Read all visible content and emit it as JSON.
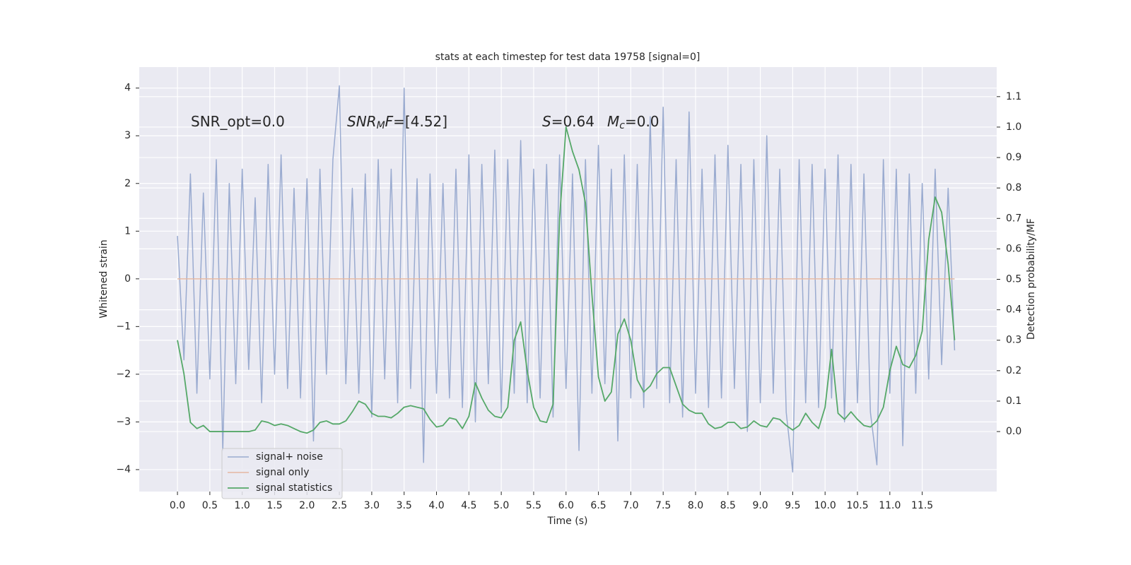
{
  "chart_data": {
    "type": "line",
    "title": "stats at each timestep for test data 19758 [signal=0]",
    "xlabel": "Time (s)",
    "ylabel": "Whitened strain",
    "y2label": "Detection probability/MF",
    "annotations": [
      [
        "SNR_opt=0.0"
      ],
      [
        "SNR",
        "M",
        "F",
        "=[4.52]"
      ],
      [
        "S",
        "=0.64"
      ],
      [
        "M",
        "c",
        "=0.0"
      ]
    ],
    "x": [
      0,
      0.1,
      0.2,
      0.3,
      0.4,
      0.5,
      0.6,
      0.7,
      0.8,
      0.9,
      1,
      1.1,
      1.2,
      1.3,
      1.4,
      1.5,
      1.6,
      1.7,
      1.8,
      1.9,
      2,
      2.1,
      2.2,
      2.3,
      2.4,
      2.5,
      2.6,
      2.7,
      2.8,
      2.9,
      3,
      3.1,
      3.2,
      3.3,
      3.4,
      3.5,
      3.6,
      3.7,
      3.8,
      3.9,
      4,
      4.1,
      4.2,
      4.3,
      4.4,
      4.5,
      4.6,
      4.7,
      4.8,
      4.9,
      5,
      5.1,
      5.2,
      5.3,
      5.4,
      5.5,
      5.6,
      5.7,
      5.8,
      5.9,
      6,
      6.1,
      6.2,
      6.3,
      6.4,
      6.5,
      6.6,
      6.7,
      6.8,
      6.9,
      7,
      7.1,
      7.2,
      7.3,
      7.4,
      7.5,
      7.6,
      7.7,
      7.8,
      7.9,
      8,
      8.1,
      8.2,
      8.3,
      8.4,
      8.5,
      8.6,
      8.7,
      8.8,
      8.9,
      9,
      9.1,
      9.2,
      9.3,
      9.4,
      9.5,
      9.6,
      9.7,
      9.8,
      9.9,
      10,
      10.1,
      10.2,
      10.3,
      10.4,
      10.5,
      10.6,
      10.7,
      10.8,
      10.9,
      11,
      11.1,
      11.2,
      11.3,
      11.4,
      11.5,
      11.6,
      11.7,
      11.8,
      11.9,
      12
    ],
    "series": [
      {
        "name": "signal+ noise",
        "color": "#9aabd0",
        "width": 1.5,
        "values": [
          0.9,
          -1.7,
          2.2,
          -2.4,
          1.8,
          -2.1,
          2.5,
          -3.6,
          2.0,
          -2.2,
          2.3,
          -1.9,
          1.7,
          -2.6,
          2.4,
          -2.0,
          2.6,
          -2.3,
          1.9,
          -2.5,
          2.1,
          -3.4,
          2.3,
          -2.0,
          2.5,
          4.05,
          -2.2,
          1.9,
          -2.4,
          2.2,
          -2.9,
          2.5,
          -2.1,
          2.3,
          -2.6,
          4.0,
          -2.3,
          2.1,
          -3.85,
          2.2,
          -2.4,
          2.0,
          -2.5,
          2.3,
          -2.7,
          2.6,
          -3.0,
          2.4,
          -2.2,
          2.7,
          -2.8,
          2.5,
          -2.4,
          2.9,
          -2.6,
          2.3,
          -2.5,
          2.4,
          -2.9,
          2.6,
          -2.3,
          2.2,
          -3.6,
          2.5,
          -2.4,
          2.8,
          -2.2,
          2.3,
          -3.4,
          2.6,
          -2.5,
          2.4,
          -2.7,
          3.4,
          -2.3,
          3.6,
          -2.6,
          2.5,
          -2.9,
          3.5,
          -2.4,
          2.3,
          -2.7,
          2.6,
          -2.5,
          2.8,
          -2.3,
          2.4,
          -3.2,
          2.5,
          -2.6,
          3.0,
          -2.4,
          2.3,
          -2.8,
          -4.05,
          2.5,
          -2.6,
          2.4,
          -2.7,
          2.3,
          -2.5,
          2.6,
          -3.0,
          2.4,
          -2.6,
          2.2,
          -2.8,
          -3.9,
          2.5,
          -2.4,
          2.3,
          -3.5,
          2.2,
          -2.4,
          2.0,
          -2.1,
          2.3,
          -1.8,
          1.9,
          -1.5
        ]
      },
      {
        "name": "signal only",
        "color": "#e4b7a2",
        "width": 1.5,
        "values": [
          0,
          0,
          0,
          0,
          0,
          0,
          0,
          0,
          0,
          0,
          0,
          0,
          0,
          0,
          0,
          0,
          0,
          0,
          0,
          0,
          0,
          0,
          0,
          0,
          0,
          0,
          0,
          0,
          0,
          0,
          0,
          0,
          0,
          0,
          0,
          0,
          0,
          0,
          0,
          0,
          0,
          0,
          0,
          0,
          0,
          0,
          0,
          0,
          0,
          0,
          0,
          0,
          0,
          0,
          0,
          0,
          0,
          0,
          0,
          0,
          0,
          0,
          0,
          0,
          0,
          0,
          0,
          0,
          0,
          0,
          0,
          0,
          0,
          0,
          0,
          0,
          0,
          0,
          0,
          0,
          0,
          0,
          0,
          0,
          0,
          0,
          0,
          0,
          0,
          0,
          0,
          0,
          0,
          0,
          0,
          0,
          0,
          0,
          0,
          0,
          0,
          0,
          0,
          0,
          0,
          0,
          0,
          0,
          0,
          0,
          0,
          0,
          0,
          0,
          0,
          0,
          0,
          0,
          0,
          0,
          0
        ]
      },
      {
        "name": "signal statistics",
        "color": "#55a868",
        "width": 1.8,
        "axis": "y2",
        "values": [
          0.3,
          0.19,
          0.03,
          0.01,
          0.02,
          0.0,
          0.0,
          0.0,
          0.0,
          0.0,
          0.0,
          0.0,
          0.005,
          0.035,
          0.03,
          0.02,
          0.025,
          0.02,
          0.01,
          0.0,
          -0.005,
          0.005,
          0.03,
          0.035,
          0.025,
          0.025,
          0.035,
          0.065,
          0.1,
          0.09,
          0.06,
          0.05,
          0.05,
          0.045,
          0.06,
          0.08,
          0.085,
          0.08,
          0.075,
          0.04,
          0.015,
          0.02,
          0.045,
          0.04,
          0.01,
          0.05,
          0.16,
          0.11,
          0.07,
          0.05,
          0.045,
          0.08,
          0.3,
          0.36,
          0.2,
          0.08,
          0.035,
          0.03,
          0.09,
          0.7,
          1.0,
          0.92,
          0.86,
          0.75,
          0.45,
          0.18,
          0.1,
          0.13,
          0.32,
          0.37,
          0.3,
          0.17,
          0.13,
          0.15,
          0.19,
          0.21,
          0.21,
          0.15,
          0.09,
          0.07,
          0.06,
          0.06,
          0.025,
          0.01,
          0.015,
          0.03,
          0.03,
          0.01,
          0.015,
          0.035,
          0.02,
          0.015,
          0.045,
          0.04,
          0.02,
          0.005,
          0.02,
          0.06,
          0.03,
          0.01,
          0.08,
          0.27,
          0.06,
          0.04,
          0.065,
          0.04,
          0.02,
          0.015,
          0.035,
          0.08,
          0.2,
          0.28,
          0.22,
          0.21,
          0.25,
          0.33,
          0.63,
          0.77,
          0.72,
          0.55,
          0.3
        ]
      }
    ],
    "xlim": [
      -0.59,
      12.65
    ],
    "ylim": [
      -4.46,
      4.44
    ],
    "y2lim": [
      -0.197,
      1.197
    ],
    "xticks": [
      {
        "value": 0,
        "label": "0.0"
      },
      0.5,
      {
        "value": 1,
        "label": "1.0"
      },
      1.5,
      {
        "value": 2,
        "label": "2.0"
      },
      2.5,
      {
        "value": 3,
        "label": "3.0"
      },
      3.5,
      {
        "value": 4,
        "label": "4.0"
      },
      4.5,
      {
        "value": 5,
        "label": "5.0"
      },
      5.5,
      {
        "value": 6,
        "label": "6.0"
      },
      6.5,
      {
        "value": 7,
        "label": "7.0"
      },
      7.5,
      {
        "value": 8,
        "label": "8.0"
      },
      8.5,
      {
        "value": 9,
        "label": "9.0"
      },
      9.5,
      {
        "value": 10,
        "label": "10.0"
      },
      10.5,
      {
        "value": 11,
        "label": "11.0"
      },
      11.5
    ],
    "yticks": [
      {
        "value": -4,
        "label": "−4"
      },
      {
        "value": -3,
        "label": "−3"
      },
      {
        "value": -2,
        "label": "−2"
      },
      {
        "value": -1,
        "label": "−1"
      },
      0,
      1,
      2,
      3,
      4
    ],
    "y2ticks": [
      {
        "value": 0,
        "label": "0.0"
      },
      0.1,
      0.2,
      0.3,
      0.4,
      0.5,
      0.6,
      0.7,
      0.8,
      0.9,
      {
        "value": 1,
        "label": "1.0"
      },
      1.1
    ],
    "grid": true,
    "legend": "lower left",
    "background": "#eaeaf2"
  }
}
